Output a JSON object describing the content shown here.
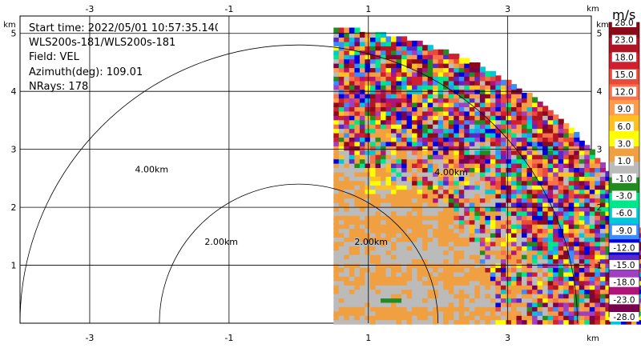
{
  "info": {
    "start_time": "Start time: 2022/05/01 10:57:35.140",
    "instrument": "WLS200s-181/WLS200s-181",
    "field": "Field: VEL",
    "azimuth": "Azimuth(deg): 109.01",
    "nrays": "NRays: 178"
  },
  "colorbar": {
    "unit": "m/s",
    "labels": [
      "28.0",
      "23.0",
      "18.0",
      "15.0",
      "12.0",
      "9.0",
      "6.0",
      "3.0",
      "1.0",
      "-1.0",
      "-3.0",
      "-6.0",
      "-9.0",
      "-12.0",
      "-15.0",
      "-18.0",
      "-23.0",
      "-28.0"
    ],
    "colors": [
      "#8b0a1a",
      "#b01525",
      "#d02030",
      "#ea4a3a",
      "#f7714a",
      "#ff9b4d",
      "#ffc020",
      "#ffff00",
      "#f0a040",
      "#bbbbbb",
      "#228b22",
      "#00e68a",
      "#00c8d8",
      "#3a8cff",
      "#0000e0",
      "#5a28c8",
      "#a040c0",
      "#b01478",
      "#7a0050"
    ]
  },
  "axes": {
    "x_ticks": [
      "-3",
      "-1",
      "1",
      "3"
    ],
    "y_ticks": [
      "5",
      "4",
      "3",
      "2",
      "1"
    ],
    "unit_label": "km"
  },
  "range_rings": [
    "4.00km",
    "2.00km",
    "2.00km",
    "4.00km"
  ],
  "chart_data": {
    "type": "heatmap",
    "title": "",
    "xlabel": "km",
    "ylabel": "km",
    "xlim": [
      -4,
      4.2
    ],
    "ylim": [
      0,
      5.3
    ],
    "x_ticks": [
      -3,
      -1,
      1,
      3
    ],
    "y_ticks": [
      1,
      2,
      3,
      4,
      5
    ],
    "range_rings_km": [
      2,
      4
    ],
    "data_sector_km": {
      "x_min": 0.5,
      "radius": 5.1
    },
    "colorbar_levels": [
      28,
      23,
      18,
      15,
      12,
      9,
      6,
      3,
      1,
      -1,
      -3,
      -6,
      -9,
      -12,
      -15,
      -18,
      -23,
      -28
    ],
    "colorbar_unit": "m/s"
  }
}
